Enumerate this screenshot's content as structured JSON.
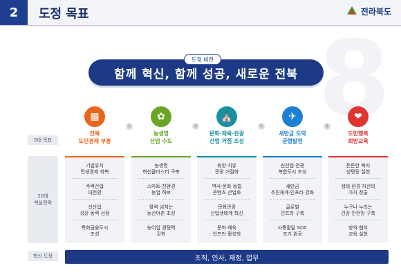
{
  "header": {
    "section_number": "2",
    "section_title": "도정 목표",
    "logo_text": "전라북도"
  },
  "vision": {
    "tag": "도정 비전",
    "text": "함께 혁신, 함께 성공, 새로운 전북"
  },
  "labels": {
    "goals": "5대 목표",
    "strategies": "20대\n핵심전략",
    "innovation": "혁신 도정"
  },
  "colors": {
    "navy": "#1e3a86",
    "orange": "#e8661d",
    "green": "#6aa524",
    "teal": "#1a8fa0",
    "blue": "#1d7fd1",
    "red": "#e0342f"
  },
  "goals": [
    {
      "icon": "bar-chart-icon",
      "label": "전북\n도민경제 부흥",
      "color": "#e8661d",
      "strategies": [
        "기업유치\n민생경제 회복",
        "주력산업\n대전환",
        "신산업\n성장 동력 선점",
        "특화금융도시\n조성"
      ]
    },
    {
      "icon": "sprout-icon",
      "label": "농생명\n산업 수도",
      "color": "#6aa524",
      "strategies": [
        "농생명\n혁신클러스터 구축",
        "스마트·친환경\n농업 허브",
        "활력 넘치는\n농산어촌 조성",
        "농어업 경쟁력\n강화"
      ]
    },
    {
      "icon": "building-icon",
      "label": "문화·체육·관광\n산업 거점 조성",
      "color": "#1a8fa0",
      "strategies": [
        "휴양·치유\n관광 거점화",
        "역사·문화 융합\n콘텐츠 산업화",
        "문화관광\n산업생태계 혁신",
        "문화·체육\n인프라 활성화"
      ]
    },
    {
      "icon": "airplane-icon",
      "label": "새만금 도약\n균형발전",
      "color": "#1d7fd1",
      "strategies": [
        "신산업·관광\n복합도시 조성",
        "새만금\n추진체계·인프라 강화",
        "글로벌\n인프라 구축",
        "사통팔달 SOC\n조기 완공"
      ]
    },
    {
      "icon": "heart-hand-icon",
      "label": "도민행복\n희망교육",
      "color": "#e0342f",
      "strategies": [
        "든든한 복지\n성평등 실현",
        "생태·환경 자산의\n가치 창출",
        "누구나 누리는\n건강·안전망 구축",
        "창의·협치\n교육 실현"
      ]
    }
  ],
  "innovation": {
    "text": "조직, 인사, 재정, 업무"
  }
}
